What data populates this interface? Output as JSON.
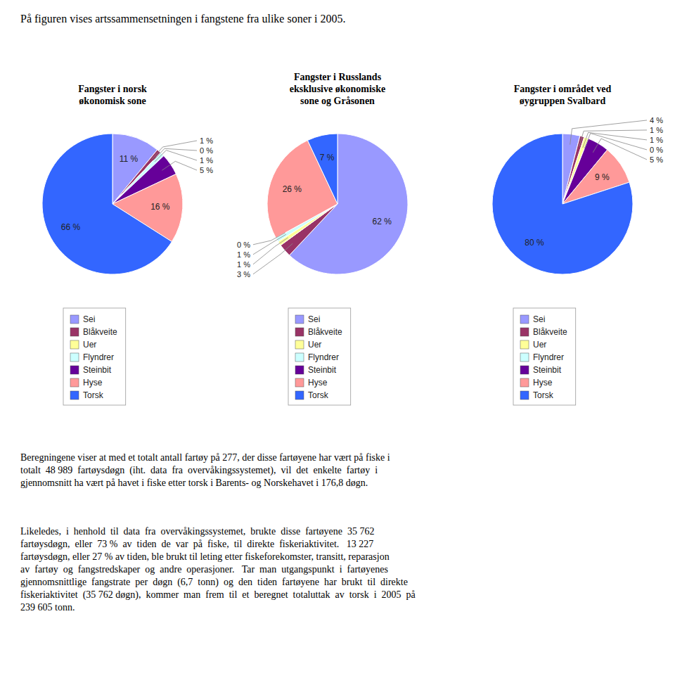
{
  "title": "På figuren vises artssammensetningen i fangstene fra ulike soner i 2005.",
  "annotations": [
    "Beregningene viser at med et totalt antall fartøy på 277, der disse fartøyene har vært på fiske i\ntotalt  48 989  fartøysdøgn  (iht.  data  fra  overvåkingssystemet),  vil  det  enkelte  fartøy  i\ngjennomsnitt ha vært på havet i fiske etter torsk i Barents- og Norskehavet i 176,8 døgn.",
    "Likeledes,  i  henhold  til  data  fra  overvåkingssystemet,  brukte  disse  fartøyene  35 762\nfartøysdøgn,  eller  73 %  av  tiden  de  var  på  fiske,  til  direkte  fiskeriaktivitet.   13 227\nfartøysdøgn, eller 27 % av tiden, ble brukt til leting etter fiskeforekomster, transitt, reparasjon\nav  fartøy  og  fangstredskaper  og  andre  operasjoner.   Tar  man  utgangspunkt  i  fartøyenes\ngjennomsnittlige  fangstrate  per  døgn  (6,7  tonn)  og  den  tiden  fartøyene  har  brukt  til  direkte\nfiskeriaktivitet  (35 762 døgn),  kommer  man  frem  til  et  beregnet  totaluttak  av  torsk  i  2005  på\n239 605 tonn."
  ],
  "chart_data": [
    {
      "type": "pie",
      "title": "Fangster i norsk\nøkonomisk sone",
      "categories": [
        "Sei",
        "Blåkveite",
        "Uer",
        "Flyndrer",
        "Steinbit",
        "Hyse",
        "Torsk"
      ],
      "values": [
        11,
        1,
        0,
        1,
        5,
        16,
        66
      ],
      "value_labels": [
        "11 %",
        "1 %",
        "0 %",
        "1 %",
        "5 %",
        "16 %",
        "66 %"
      ],
      "colors": [
        "#9999ff",
        "#993366",
        "#ffff99",
        "#ccffff",
        "#660099",
        "#ff9999",
        "#3366ff"
      ],
      "data_labels": true,
      "legend": "bottom"
    },
    {
      "type": "pie",
      "title": "Fangster i Russlands\neksklusive økonomiske\nsone og Gråsonen",
      "categories": [
        "Sei",
        "Blåkveite",
        "Uer",
        "Flyndrer",
        "Steinbit",
        "Hyse",
        "Torsk"
      ],
      "values": [
        62,
        3,
        1,
        1,
        0,
        26,
        7
      ],
      "value_labels": [
        "62 %",
        "3 %",
        "1 %",
        "1 %",
        "0 %",
        "26 %",
        "7 %"
      ],
      "colors": [
        "#9999ff",
        "#993366",
        "#ffff99",
        "#ccffff",
        "#660099",
        "#ff9999",
        "#3366ff"
      ],
      "data_labels": true,
      "legend": "bottom"
    },
    {
      "type": "pie",
      "title": "Fangster i området ved\nøygruppen Svalbard",
      "categories": [
        "Sei",
        "Blåkveite",
        "Uer",
        "Flyndrer",
        "Steinbit",
        "Hyse",
        "Torsk"
      ],
      "values": [
        4,
        1,
        1,
        0,
        5,
        9,
        80
      ],
      "value_labels": [
        "4 %",
        "1 %",
        "1 %",
        "0 %",
        "5 %",
        "9 %",
        "80 %"
      ],
      "colors": [
        "#9999ff",
        "#993366",
        "#ffff99",
        "#ccffff",
        "#660099",
        "#ff9999",
        "#3366ff"
      ],
      "data_labels": true,
      "legend": "bottom"
    }
  ]
}
